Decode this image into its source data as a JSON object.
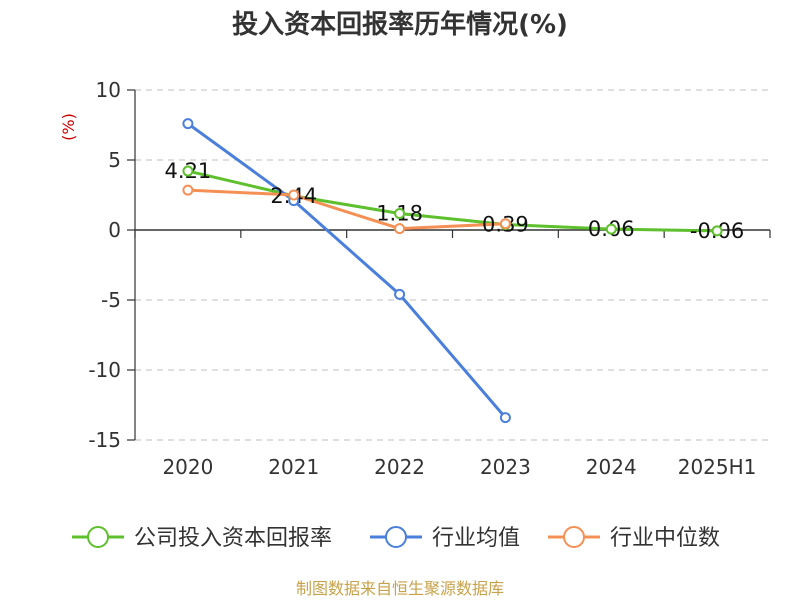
{
  "chart_data": {
    "type": "line",
    "title": "投入资本回报率历年情况(%)",
    "ylabel": "(%)",
    "categories": [
      "2020",
      "2021",
      "2022",
      "2023",
      "2024",
      "2025H1"
    ],
    "ylim": [
      -15,
      10
    ],
    "yticks": [
      10,
      5,
      0,
      -5,
      -10,
      -15
    ],
    "grid": true,
    "legend_position": "bottom",
    "series": [
      {
        "name": "公司投入资本回报率",
        "color": "#5ec02c",
        "values": [
          4.21,
          2.44,
          1.18,
          0.39,
          0.06,
          -0.06
        ],
        "labels": [
          "4.21",
          "2.44",
          "1.18",
          "0.39",
          "0.06",
          "-0.06"
        ]
      },
      {
        "name": "行业均值",
        "color": "#4a7fdc",
        "values": [
          7.6,
          2.1,
          -4.6,
          -13.4,
          null,
          null
        ]
      },
      {
        "name": "行业中位数",
        "color": "#f59055",
        "values": [
          2.85,
          2.5,
          0.1,
          0.45,
          null,
          null
        ]
      }
    ]
  },
  "footer": {
    "source": "制图数据来自恒生聚源数据库"
  }
}
